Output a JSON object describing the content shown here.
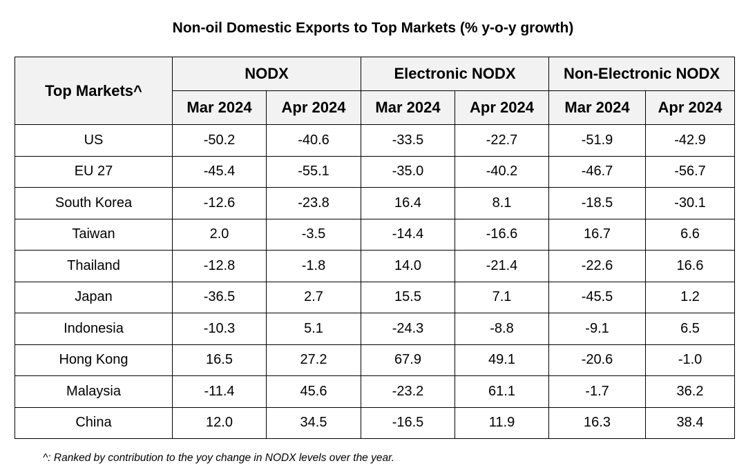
{
  "title": "Non-oil Domestic Exports to Top Markets (% y-o-y growth)",
  "table": {
    "market_header": "Top Markets^",
    "groups": [
      {
        "label": "NODX"
      },
      {
        "label": "Electronic NODX"
      },
      {
        "label": "Non-Electronic NODX"
      }
    ],
    "periods": [
      "Mar 2024",
      "Apr 2024",
      "Mar 2024",
      "Apr 2024",
      "Mar 2024",
      "Apr 2024"
    ],
    "rows": [
      {
        "market": "US",
        "values": [
          "-50.2",
          "-40.6",
          "-33.5",
          "-22.7",
          "-51.9",
          "-42.9"
        ]
      },
      {
        "market": "EU 27",
        "values": [
          "-45.4",
          "-55.1",
          "-35.0",
          "-40.2",
          "-46.7",
          "-56.7"
        ]
      },
      {
        "market": "South Korea",
        "values": [
          "-12.6",
          "-23.8",
          "16.4",
          "8.1",
          "-18.5",
          "-30.1"
        ]
      },
      {
        "market": "Taiwan",
        "values": [
          "2.0",
          "-3.5",
          "-14.4",
          "-16.6",
          "16.7",
          "6.6"
        ]
      },
      {
        "market": "Thailand",
        "values": [
          "-12.8",
          "-1.8",
          "14.0",
          "-21.4",
          "-22.6",
          "16.6"
        ]
      },
      {
        "market": "Japan",
        "values": [
          "-36.5",
          "2.7",
          "15.5",
          "7.1",
          "-45.5",
          "1.2"
        ]
      },
      {
        "market": "Indonesia",
        "values": [
          "-10.3",
          "5.1",
          "-24.3",
          "-8.8",
          "-9.1",
          "6.5"
        ]
      },
      {
        "market": "Hong Kong",
        "values": [
          "16.5",
          "27.2",
          "67.9",
          "49.1",
          "-20.6",
          "-1.0"
        ]
      },
      {
        "market": "Malaysia",
        "values": [
          "-11.4",
          "45.6",
          "-23.2",
          "61.1",
          "-1.7",
          "36.2"
        ]
      },
      {
        "market": "China",
        "values": [
          "12.0",
          "34.5",
          "-16.5",
          "11.9",
          "16.3",
          "38.4"
        ]
      }
    ]
  },
  "footnote": "^: Ranked by contribution to the yoy change in NODX levels over the year.",
  "colors": {
    "header_bg": "#f2f2f2",
    "border": "#000000"
  }
}
